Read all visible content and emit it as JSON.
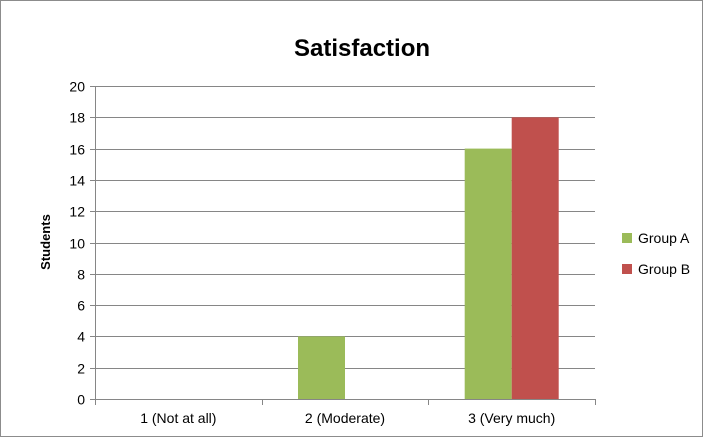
{
  "chart_data": {
    "type": "bar",
    "title": "Satisfaction",
    "xlabel": "",
    "ylabel": "Students",
    "ylim": [
      0,
      20
    ],
    "ytick_step": 2,
    "grid": true,
    "legend_position": "right",
    "categories": [
      "1 (Not at all)",
      "2 (Moderate)",
      "3 (Very much)"
    ],
    "series": [
      {
        "name": "Group A",
        "color": "#9BBB59",
        "values": [
          0,
          4,
          16
        ]
      },
      {
        "name": "Group B",
        "color": "#C0504D",
        "values": [
          0,
          0,
          18
        ]
      }
    ]
  }
}
